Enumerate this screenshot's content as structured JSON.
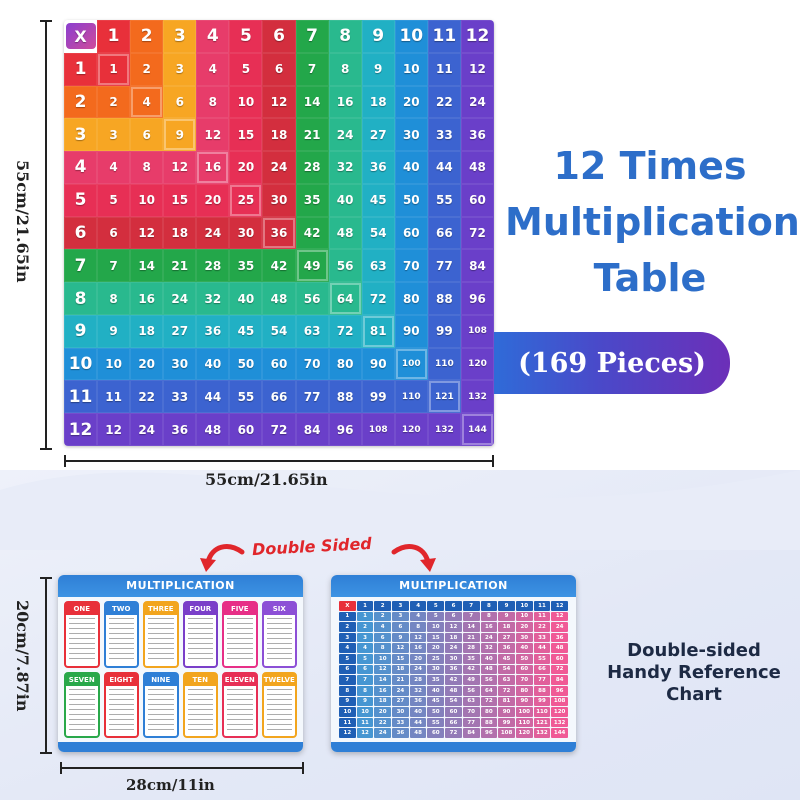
{
  "puzzle": {
    "corner": "X",
    "headers": [
      "1",
      "2",
      "3",
      "4",
      "5",
      "6",
      "7",
      "8",
      "9",
      "10",
      "11",
      "12"
    ],
    "height_label": "55cm/21.65in",
    "width_label": "55cm/21.65in"
  },
  "title": {
    "line1": "12 Times",
    "line2": "Multiplication",
    "line3": "Table"
  },
  "pieces_label": "(169 Pieces)",
  "double_sided_label": "Double Sided",
  "chart_front": {
    "title": "MULTIPLICATION",
    "boxes": [
      "ONE",
      "TWO",
      "THREE",
      "FOUR",
      "FIVE",
      "SIX",
      "SEVEN",
      "EIGHT",
      "NINE",
      "TEN",
      "ELEVEN",
      "TWELVE"
    ]
  },
  "chart_back": {
    "title": "MULTIPLICATION",
    "corner": "X"
  },
  "small_height_label": "20cm/7.87in",
  "small_width_label": "28cm/11in",
  "reference_text": {
    "line1": "Double-sided",
    "line2": "Handy Reference",
    "line3": "Chart"
  },
  "colors": {
    "title": "#2d6ec9",
    "pieces_start": "#2f6bd8",
    "pieces_end": "#6c2fb8",
    "double_sided": "#e0262b"
  }
}
